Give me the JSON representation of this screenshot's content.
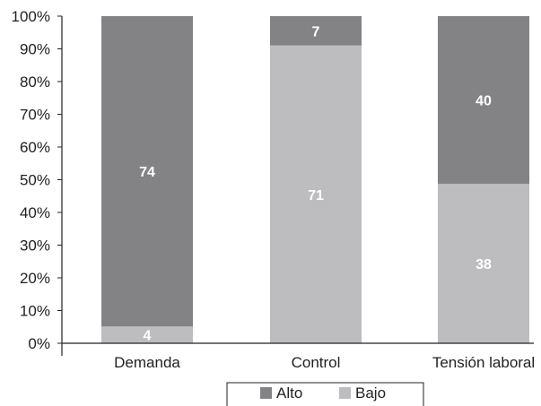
{
  "chart_data": {
    "type": "bar",
    "stacked": true,
    "percent_stacked": true,
    "categories": [
      "Demanda",
      "Control",
      "Tensión laboral"
    ],
    "series": [
      {
        "name": "Bajo",
        "values": [
          4,
          71,
          38
        ],
        "color": "#bdbdbf"
      },
      {
        "name": "Alto",
        "values": [
          74,
          7,
          40
        ],
        "color": "#838386"
      }
    ],
    "ylim": [
      0,
      100
    ],
    "yticks": [
      "0%",
      "10%",
      "20%",
      "30%",
      "40%",
      "50%",
      "60%",
      "70%",
      "80%",
      "90%",
      "100%"
    ],
    "title": "",
    "xlabel": "",
    "ylabel": "",
    "grid": false,
    "legend": {
      "position": "bottom",
      "entries": [
        "Alto",
        "Bajo"
      ]
    }
  }
}
